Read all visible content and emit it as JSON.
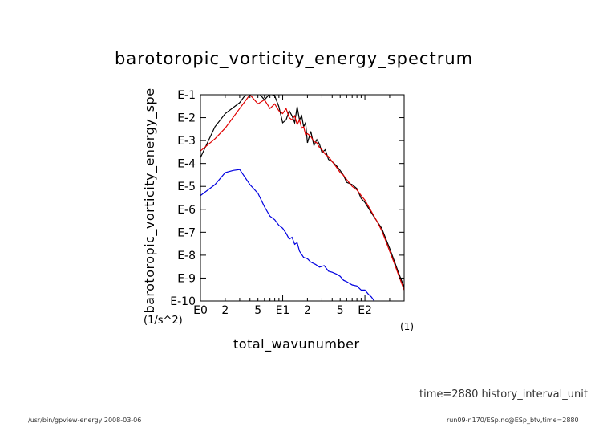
{
  "chart_data": {
    "type": "line",
    "title": "barotoropic_vorticity_energy_spectrum",
    "xlabel": "total_wavunumber",
    "xunit": "(1)",
    "ylabel": "barotoropic_vorticity_energy_spe",
    "yunit": "(1/s^2)",
    "xscale": "log",
    "yscale": "log",
    "xlim": [
      1,
      300
    ],
    "ylim": [
      1e-10,
      0.1
    ],
    "x_tick_labels": [
      "E0",
      "2",
      "5",
      "E1",
      "2",
      "5",
      "E2"
    ],
    "x_tick_values": [
      1,
      2,
      5,
      10,
      20,
      50,
      100
    ],
    "y_tick_labels": [
      "E-1",
      "E-2",
      "E-3",
      "E-4",
      "E-5",
      "E-6",
      "E-7",
      "E-8",
      "E-9",
      "E-10"
    ],
    "y_tick_values": [
      0.1,
      0.01,
      0.001,
      0.0001,
      1e-05,
      1e-06,
      1e-07,
      1e-08,
      1e-09,
      1e-10
    ],
    "grid": false,
    "series": [
      {
        "color": "#000000",
        "x": [
          1,
          1.5,
          2,
          3,
          4,
          5,
          6,
          7,
          8,
          9,
          10,
          11,
          12,
          13,
          14,
          15,
          16,
          17,
          18,
          19,
          20,
          22,
          24,
          26,
          28,
          30,
          33,
          36,
          40,
          45,
          50,
          55,
          60,
          70,
          80,
          90,
          100,
          120,
          140,
          160,
          180,
          200,
          230,
          260,
          300
        ],
        "y": [
          0.00018,
          0.004,
          0.015,
          0.045,
          0.18,
          0.13,
          0.06,
          0.11,
          0.09,
          0.03,
          0.006,
          0.008,
          0.02,
          0.012,
          0.006,
          0.03,
          0.008,
          0.012,
          0.004,
          0.006,
          0.0008,
          0.0025,
          0.0006,
          0.0011,
          0.0007,
          0.0003,
          0.0004,
          0.00015,
          0.00012,
          8e-05,
          5e-05,
          3e-05,
          1.5e-05,
          1.2e-05,
          8e-06,
          3e-06,
          2e-06,
          7e-07,
          3e-07,
          1.5e-07,
          5e-08,
          2e-08,
          5e-09,
          1.5e-09,
          4e-10
        ]
      },
      {
        "color": "#e00000",
        "x": [
          1,
          1.5,
          2,
          3,
          4,
          5,
          6,
          7,
          8,
          9,
          10,
          11,
          12,
          13,
          14,
          15,
          16,
          17,
          18,
          19,
          20,
          22,
          24,
          26,
          28,
          30,
          33,
          36,
          40,
          45,
          50,
          55,
          60,
          70,
          80,
          90,
          100,
          120,
          140,
          160,
          180,
          200,
          230,
          260,
          300
        ],
        "y": [
          0.00035,
          0.0012,
          0.0035,
          0.025,
          0.1,
          0.04,
          0.06,
          0.025,
          0.04,
          0.02,
          0.015,
          0.025,
          0.01,
          0.008,
          0.012,
          0.005,
          0.008,
          0.0035,
          0.004,
          0.0018,
          0.002,
          0.0015,
          0.0009,
          0.0008,
          0.0005,
          0.0004,
          0.00025,
          0.0002,
          0.00012,
          7e-05,
          4e-05,
          3e-05,
          2e-05,
          1e-05,
          7e-06,
          4e-06,
          2.5e-06,
          8e-07,
          3e-07,
          1.2e-07,
          4e-08,
          1.5e-08,
          4e-09,
          1.2e-09,
          3e-10
        ]
      },
      {
        "color": "#0000e0",
        "x": [
          1,
          1.5,
          2,
          2.5,
          3,
          4,
          5,
          6,
          7,
          8,
          9,
          10,
          11,
          12,
          13,
          14,
          15,
          16,
          18,
          20,
          22,
          25,
          28,
          32,
          36,
          40,
          45,
          50,
          55,
          60,
          70,
          80,
          90,
          100,
          110,
          120,
          130
        ],
        "y": [
          4e-06,
          1.2e-05,
          4e-05,
          5e-05,
          5.5e-05,
          1.2e-05,
          5e-06,
          1.3e-06,
          5e-07,
          3.5e-07,
          2e-07,
          1.5e-07,
          9e-08,
          5e-08,
          6e-08,
          3e-08,
          3.5e-08,
          1.5e-08,
          8e-09,
          7e-09,
          5e-09,
          4e-09,
          3e-09,
          3.5e-09,
          2e-09,
          1.8e-09,
          1.5e-09,
          1.2e-09,
          8e-10,
          7e-10,
          5e-10,
          4.5e-10,
          3e-10,
          3e-10,
          2e-10,
          1.5e-10,
          1e-10
        ]
      }
    ]
  },
  "footer": {
    "time_label": "time=2880 history_interval_unit",
    "left_text": "/usr/bin/gpview-energy  2008-03-06",
    "right_text": "run09-n170/ESp.nc@ESp_btv,time=2880"
  }
}
